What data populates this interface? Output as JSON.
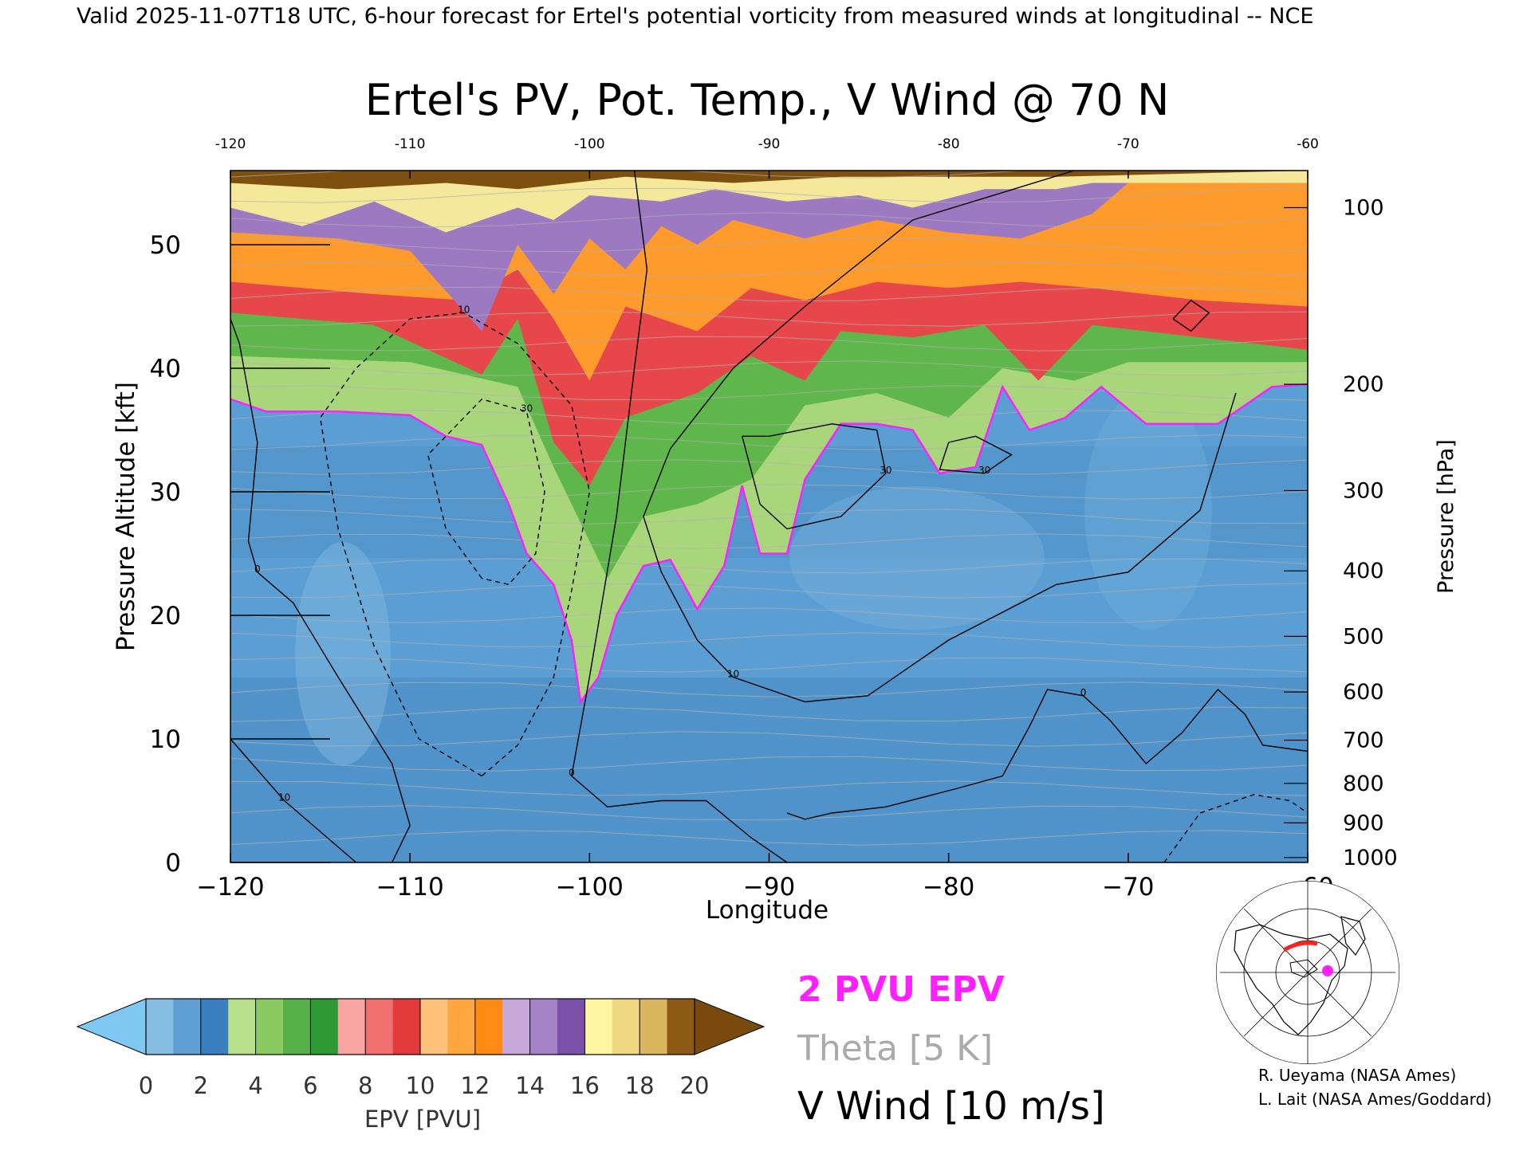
{
  "header": {
    "valid_line": "Valid 2025-11-07T18 UTC, 6-hour forecast for Ertel's potential vorticity from measured winds at longitudinal -- NCE"
  },
  "chart_data": {
    "type": "heatmap",
    "title": "Ertel's PV, Pot. Temp., V Wind @ 70 N",
    "xlabel": "Longitude",
    "ylabel_left": "Pressure Altitude [kft]",
    "ylabel_right": "Pressure [hPa]",
    "xlim": [
      -120,
      -60
    ],
    "ylim": [
      0,
      56
    ],
    "x_ticks": [
      -120,
      -110,
      -100,
      -90,
      -80,
      -70,
      -60
    ],
    "x_tick_labels": [
      "−120",
      "−110",
      "−100",
      "−90",
      "−80",
      "−70",
      "−60"
    ],
    "y_ticks": [
      0,
      10,
      20,
      30,
      40,
      50
    ],
    "y_tick_labels": [
      "0",
      "10",
      "20",
      "30",
      "40",
      "50"
    ],
    "pressure_ticks": [
      {
        "label": "100",
        "kft": 53.0
      },
      {
        "label": "200",
        "kft": 38.7
      },
      {
        "label": "300",
        "kft": 30.1
      },
      {
        "label": "400",
        "kft": 23.6
      },
      {
        "label": "500",
        "kft": 18.3
      },
      {
        "label": "600",
        "kft": 13.8
      },
      {
        "label": "700",
        "kft": 9.9
      },
      {
        "label": "800",
        "kft": 6.4
      },
      {
        "label": "900",
        "kft": 3.2
      },
      {
        "label": "1000",
        "kft": 0.4
      }
    ],
    "pv_tropopause_kft": [
      [
        -120,
        37.5
      ],
      [
        -118,
        36.5
      ],
      [
        -114,
        36.5
      ],
      [
        -110,
        36.2
      ],
      [
        -108,
        34.5
      ],
      [
        -106,
        33.8
      ],
      [
        -104.5,
        29
      ],
      [
        -103.5,
        25
      ],
      [
        -102,
        22.5
      ],
      [
        -101,
        18
      ],
      [
        -100.5,
        13
      ],
      [
        -99.5,
        15
      ],
      [
        -98.5,
        20
      ],
      [
        -97,
        24
      ],
      [
        -95.5,
        24.5
      ],
      [
        -94,
        20.5
      ],
      [
        -92.5,
        24
      ],
      [
        -91.5,
        30.5
      ],
      [
        -90.5,
        25
      ],
      [
        -89,
        25
      ],
      [
        -88,
        31
      ],
      [
        -86,
        35.5
      ],
      [
        -84,
        35.5
      ],
      [
        -82,
        35
      ],
      [
        -80.5,
        31.5
      ],
      [
        -78.5,
        32
      ],
      [
        -77,
        38.5
      ],
      [
        -75.5,
        35
      ],
      [
        -73.5,
        36
      ],
      [
        -71.5,
        38.5
      ],
      [
        -69,
        35.5
      ],
      [
        -65,
        35.5
      ],
      [
        -62,
        38.5
      ],
      [
        -60,
        38.7
      ]
    ],
    "pv_top_layers": [
      {
        "pvu": 5,
        "points": [
          [
            -120,
            41
          ],
          [
            -110,
            40.5
          ],
          [
            -104,
            38.5
          ],
          [
            -102,
            32
          ],
          [
            -100,
            26
          ],
          [
            -99,
            23
          ],
          [
            -97,
            28
          ],
          [
            -94,
            29
          ],
          [
            -91,
            31
          ],
          [
            -88,
            37
          ],
          [
            -84,
            38
          ],
          [
            -80,
            36
          ],
          [
            -77,
            40
          ],
          [
            -73,
            39
          ],
          [
            -70,
            40.5
          ],
          [
            -64,
            40.5
          ],
          [
            -60,
            40.5
          ]
        ]
      },
      {
        "pvu": 9,
        "points": [
          [
            -120,
            44.5
          ],
          [
            -112,
            43.5
          ],
          [
            -106,
            39.5
          ],
          [
            -104,
            44
          ],
          [
            -102,
            34
          ],
          [
            -100,
            30.5
          ],
          [
            -98,
            36
          ],
          [
            -94,
            38
          ],
          [
            -91,
            41
          ],
          [
            -88,
            39
          ],
          [
            -86,
            43
          ],
          [
            -82,
            42.5
          ],
          [
            -78,
            43.5
          ],
          [
            -75,
            39
          ],
          [
            -72,
            43.5
          ],
          [
            -66,
            42.5
          ],
          [
            -60,
            41.5
          ]
        ]
      },
      {
        "pvu": 11,
        "points": [
          [
            -120,
            47
          ],
          [
            -112,
            46
          ],
          [
            -107,
            45.5
          ],
          [
            -104,
            48
          ],
          [
            -102,
            44
          ],
          [
            -100,
            39
          ],
          [
            -98,
            45
          ],
          [
            -94,
            43
          ],
          [
            -91,
            46.5
          ],
          [
            -88,
            45.5
          ],
          [
            -84,
            47
          ],
          [
            -80,
            46.5
          ],
          [
            -76,
            47
          ],
          [
            -72,
            46.5
          ],
          [
            -66,
            45.5
          ],
          [
            -60,
            45
          ]
        ]
      },
      {
        "pvu": 15,
        "points": [
          [
            -120,
            51
          ],
          [
            -114,
            50.5
          ],
          [
            -110,
            49.5
          ],
          [
            -106,
            43
          ],
          [
            -104,
            50
          ],
          [
            -102,
            46
          ],
          [
            -100,
            50.5
          ],
          [
            -98,
            48
          ],
          [
            -96,
            51.5
          ],
          [
            -94,
            50
          ],
          [
            -92,
            52
          ],
          [
            -88,
            50.5
          ],
          [
            -84,
            52
          ],
          [
            -80,
            51
          ],
          [
            -76,
            50.5
          ],
          [
            -72,
            52.5
          ],
          [
            -70,
            55
          ],
          [
            -60,
            55
          ]
        ]
      },
      {
        "pvu": 17,
        "points": [
          [
            -120,
            53
          ],
          [
            -116,
            51.5
          ],
          [
            -112,
            53.5
          ],
          [
            -108,
            51
          ],
          [
            -104,
            53
          ],
          [
            -102,
            52
          ],
          [
            -100,
            54
          ],
          [
            -96,
            53.5
          ],
          [
            -93,
            54.5
          ],
          [
            -89,
            53.5
          ],
          [
            -85,
            54
          ],
          [
            -82,
            53
          ],
          [
            -78,
            54.5
          ],
          [
            -74,
            54.5
          ],
          [
            -72,
            55
          ],
          [
            -60,
            55
          ]
        ]
      },
      {
        "pvu": 19,
        "points": [
          [
            -120,
            55
          ],
          [
            -114,
            54.5
          ],
          [
            -108,
            55
          ],
          [
            -104,
            54.5
          ],
          [
            -98,
            55.5
          ],
          [
            -92,
            55
          ],
          [
            -86,
            55.5
          ],
          [
            -80,
            55.5
          ],
          [
            -74,
            55.5
          ],
          [
            -60,
            56
          ]
        ]
      }
    ],
    "v_wind_contours": [
      {
        "label": "0",
        "dashed": false,
        "points": [
          [
            -97.5,
            56
          ],
          [
            -96.8,
            48
          ],
          [
            -97.5,
            40
          ],
          [
            -98.5,
            28
          ],
          [
            -100,
            15
          ],
          [
            -101,
            7
          ],
          [
            -99,
            4.5
          ],
          [
            -96,
            5
          ],
          [
            -93.5,
            5
          ],
          [
            -91,
            2
          ],
          [
            -89,
            0
          ]
        ]
      },
      {
        "label": "0",
        "dashed": false,
        "points": [
          [
            -111,
            0
          ],
          [
            -110,
            3
          ],
          [
            -111,
            8
          ],
          [
            -114,
            15
          ],
          [
            -116.5,
            21
          ],
          [
            -118.5,
            23.5
          ],
          [
            -119,
            26
          ],
          [
            -118.5,
            34
          ],
          [
            -119.5,
            42
          ],
          [
            -120,
            44
          ]
        ]
      },
      {
        "label": "0",
        "dashed": false,
        "points": [
          [
            -89,
            4
          ],
          [
            -88,
            3.5
          ],
          [
            -86.5,
            4
          ],
          [
            -83.5,
            4.5
          ],
          [
            -79.5,
            6
          ],
          [
            -77,
            7
          ],
          [
            -75.5,
            11
          ],
          [
            -74.5,
            14
          ],
          [
            -72.5,
            13.5
          ],
          [
            -71,
            11.5
          ],
          [
            -69,
            8
          ],
          [
            -67,
            10.5
          ],
          [
            -65,
            14
          ],
          [
            -63.5,
            12
          ],
          [
            -62.5,
            9.5
          ],
          [
            -60,
            9
          ]
        ]
      },
      {
        "label": "10",
        "dashed": false,
        "points": [
          [
            -120,
            10
          ],
          [
            -117,
            5
          ],
          [
            -113,
            0
          ]
        ]
      },
      {
        "label": "10",
        "dashed": false,
        "points": [
          [
            -73,
            56
          ],
          [
            -82,
            52
          ],
          [
            -88,
            45
          ],
          [
            -92,
            40
          ],
          [
            -95.5,
            33.5
          ],
          [
            -97,
            28
          ],
          [
            -96,
            23.5
          ],
          [
            -94,
            18
          ],
          [
            -92,
            15
          ],
          [
            -88,
            13
          ],
          [
            -84.5,
            13.5
          ],
          [
            -80,
            18
          ],
          [
            -74,
            22.5
          ],
          [
            -70,
            23.5
          ],
          [
            -66,
            28.5
          ],
          [
            -64,
            38
          ]
        ]
      },
      {
        "label": "30",
        "dashed": false,
        "points": [
          [
            -91.5,
            34.5
          ],
          [
            -90.5,
            29
          ],
          [
            -89,
            27
          ],
          [
            -86,
            28
          ],
          [
            -83.5,
            31.5
          ],
          [
            -84,
            35
          ],
          [
            -86.5,
            35.5
          ],
          [
            -90,
            34.5
          ],
          [
            -91.5,
            34.5
          ]
        ]
      },
      {
        "label": "30",
        "dashed": false,
        "points": [
          [
            -80,
            34
          ],
          [
            -78.5,
            34.5
          ],
          [
            -76.5,
            33
          ],
          [
            -78,
            31.5
          ],
          [
            -80.5,
            31.8
          ],
          [
            -80,
            34
          ]
        ]
      },
      {
        "label": "",
        "dashed": false,
        "points": [
          [
            -67.5,
            44
          ],
          [
            -66.5,
            45.5
          ],
          [
            -65.5,
            44.5
          ],
          [
            -66.5,
            43
          ],
          [
            -67.5,
            44
          ]
        ]
      },
      {
        "label": "10",
        "dashed": true,
        "points": [
          [
            -106,
            7
          ],
          [
            -109.5,
            10
          ],
          [
            -112,
            17.5
          ],
          [
            -114,
            27
          ],
          [
            -115,
            36
          ],
          [
            -113,
            40
          ],
          [
            -110,
            44
          ],
          [
            -107,
            44.5
          ],
          [
            -104,
            42
          ],
          [
            -101,
            37
          ],
          [
            -100,
            30
          ],
          [
            -101,
            22
          ],
          [
            -102,
            15
          ],
          [
            -104,
            9.5
          ],
          [
            -106,
            7
          ]
        ]
      },
      {
        "label": "30",
        "dashed": true,
        "points": [
          [
            -106,
            23
          ],
          [
            -108,
            27
          ],
          [
            -109,
            33
          ],
          [
            -106,
            37.5
          ],
          [
            -103.5,
            36.5
          ],
          [
            -102.5,
            30
          ],
          [
            -103,
            25
          ],
          [
            -104.5,
            22.5
          ],
          [
            -106,
            23
          ]
        ]
      },
      {
        "label": "",
        "dashed": true,
        "points": [
          [
            -68,
            0
          ],
          [
            -66,
            4
          ],
          [
            -63,
            5.5
          ],
          [
            -61,
            5
          ],
          [
            -60,
            4
          ]
        ]
      }
    ],
    "legend_overlays": [
      {
        "label": "2 PVU EPV",
        "color": "#ff20ff"
      },
      {
        "label": "Theta [5 K]",
        "color": "#aaaaaa"
      },
      {
        "label": "V Wind [10 m/s]",
        "color": "#000000"
      }
    ],
    "colorbar": {
      "label": "EPV [PVU]",
      "ticks": [
        "0",
        "2",
        "4",
        "6",
        "8",
        "10",
        "12",
        "14",
        "16",
        "18",
        "20"
      ],
      "under_color": "#80c8f4",
      "over_color": "#7a4a0c",
      "colors": [
        "#86bde3",
        "#5f9fd2",
        "#3a80c0",
        "#b7df8c",
        "#8bca60",
        "#55b048",
        "#2f9a34",
        "#f7a4a3",
        "#f07070",
        "#e33a3c",
        "#ffc07a",
        "#ffa63e",
        "#ff8a14",
        "#c7a8d8",
        "#a682c6",
        "#7a50a8",
        "#fff4a0",
        "#f0d680",
        "#d9b65e",
        "#8b5a14"
      ]
    },
    "pv_colors": {
      "trop": "#5a9ed3",
      "layer_5": "#5fb64a",
      "layer_9": "#e7474a",
      "layer_11": "#ff9a2c",
      "layer_15": "#9d79c2",
      "layer_17": "#f5e89a",
      "layer_19": "#7d5010"
    }
  },
  "credits": {
    "line1": "R. Ueyama (NASA Ames)",
    "line2": "L. Lait (NASA Ames/Goddard)"
  }
}
